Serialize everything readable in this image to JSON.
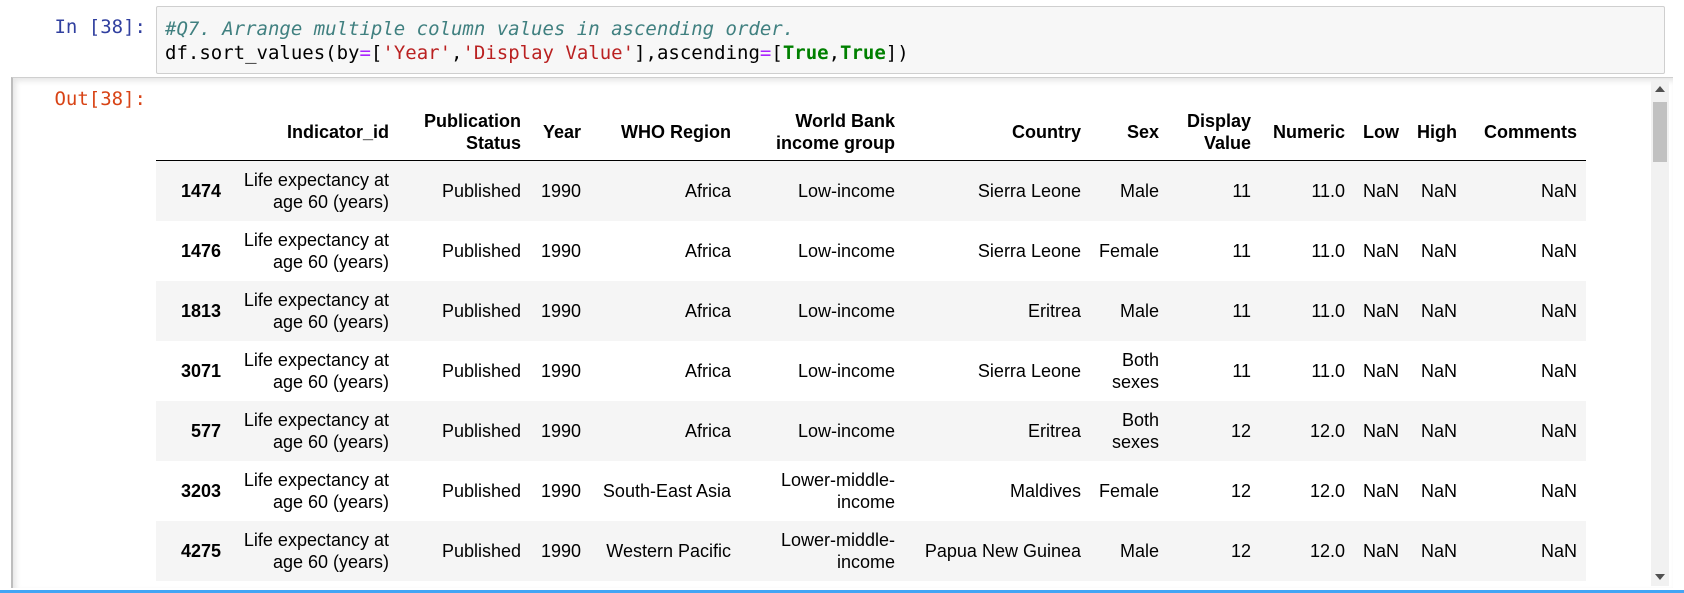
{
  "input_cell": {
    "prompt": "In [38]:",
    "comment": "#Q7. Arrange multiple column values in ascending order.",
    "code": {
      "p1": "df.sort_values(by",
      "eq1": "=",
      "p2": "[",
      "s1": "'Year'",
      "comma": ",",
      "s2": "'Display Value'",
      "p3": "],ascending",
      "eq2": "=",
      "p4": "[",
      "k1": "True",
      "comma2": ",",
      "k2": "True",
      "p5": "])"
    }
  },
  "output_cell": {
    "prompt": "Out[38]:",
    "columns": [
      "Indicator_id",
      "Publication Status",
      "Year",
      "WHO Region",
      "World Bank income group",
      "Country",
      "Sex",
      "Display Value",
      "Numeric",
      "Low",
      "High",
      "Comments"
    ],
    "rows": [
      {
        "index": "1474",
        "cells": [
          "Life expectancy at age 60 (years)",
          "Published",
          "1990",
          "Africa",
          "Low-income",
          "Sierra Leone",
          "Male",
          "11",
          "11.0",
          "NaN",
          "NaN",
          "NaN"
        ]
      },
      {
        "index": "1476",
        "cells": [
          "Life expectancy at age 60 (years)",
          "Published",
          "1990",
          "Africa",
          "Low-income",
          "Sierra Leone",
          "Female",
          "11",
          "11.0",
          "NaN",
          "NaN",
          "NaN"
        ]
      },
      {
        "index": "1813",
        "cells": [
          "Life expectancy at age 60 (years)",
          "Published",
          "1990",
          "Africa",
          "Low-income",
          "Eritrea",
          "Male",
          "11",
          "11.0",
          "NaN",
          "NaN",
          "NaN"
        ]
      },
      {
        "index": "3071",
        "cells": [
          "Life expectancy at age 60 (years)",
          "Published",
          "1990",
          "Africa",
          "Low-income",
          "Sierra Leone",
          "Both sexes",
          "11",
          "11.0",
          "NaN",
          "NaN",
          "NaN"
        ]
      },
      {
        "index": "577",
        "cells": [
          "Life expectancy at age 60 (years)",
          "Published",
          "1990",
          "Africa",
          "Low-income",
          "Eritrea",
          "Both sexes",
          "12",
          "12.0",
          "NaN",
          "NaN",
          "NaN"
        ]
      },
      {
        "index": "3203",
        "cells": [
          "Life expectancy at age 60 (years)",
          "Published",
          "1990",
          "South-East Asia",
          "Lower-middle-income",
          "Maldives",
          "Female",
          "12",
          "12.0",
          "NaN",
          "NaN",
          "NaN"
        ]
      },
      {
        "index": "4275",
        "cells": [
          "Life expectancy at age 60 (years)",
          "Published",
          "1990",
          "Western Pacific",
          "Lower-middle-income",
          "Papua New Guinea",
          "Male",
          "12",
          "12.0",
          "NaN",
          "NaN",
          "NaN"
        ]
      }
    ]
  },
  "colors": {
    "in_prompt": "#303f9f",
    "out_prompt": "#d84315",
    "comment": "#408080",
    "string": "#ba2121",
    "keyword": "#008000",
    "selection_bar": "#42a5f5"
  }
}
